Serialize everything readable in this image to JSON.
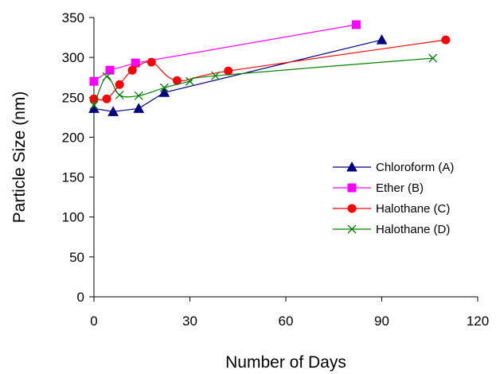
{
  "chart_data": {
    "type": "line",
    "title": "",
    "xlabel": "Number of Days",
    "ylabel": "Particle Size (nm)",
    "xlim": [
      0,
      120
    ],
    "ylim": [
      0,
      350
    ],
    "xticks": [
      0,
      30,
      60,
      90,
      120
    ],
    "yticks": [
      0,
      50,
      100,
      150,
      200,
      250,
      300,
      350
    ],
    "grid": false,
    "legend_position": "right",
    "series": [
      {
        "name": "Chloroform (A)",
        "color": "#000080",
        "marker": "triangle",
        "smooth": false,
        "x": [
          0,
          6,
          14,
          22,
          90
        ],
        "y": [
          236,
          232,
          236,
          256,
          322
        ]
      },
      {
        "name": "Ether (B)",
        "color": "#ff00ff",
        "marker": "square",
        "smooth": false,
        "x": [
          0,
          5,
          13,
          82
        ],
        "y": [
          270,
          284,
          293,
          341
        ]
      },
      {
        "name": "Halothane (C)",
        "color": "#ff0000",
        "marker": "circle",
        "smooth": true,
        "x": [
          0,
          4,
          8,
          12,
          18,
          26,
          42,
          110
        ],
        "y": [
          248,
          248,
          266,
          284,
          294,
          271,
          283,
          322
        ]
      },
      {
        "name": "Halothane (D)",
        "color": "#008000",
        "marker": "x",
        "smooth": true,
        "x": [
          0,
          4,
          8,
          14,
          22,
          30,
          38,
          106
        ],
        "y": [
          240,
          276,
          253,
          252,
          262,
          270,
          277,
          299
        ]
      }
    ]
  }
}
